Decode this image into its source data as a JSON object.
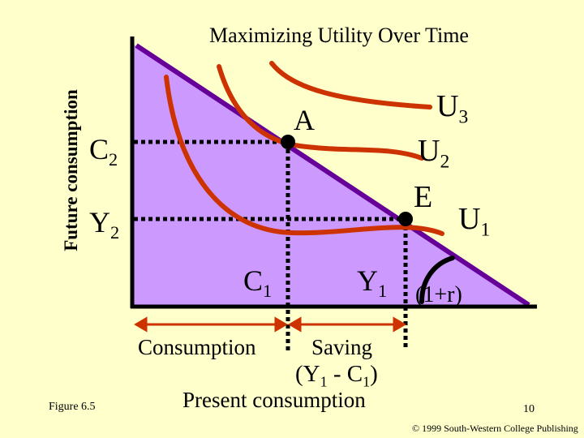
{
  "title": "Maximizing Utility Over Time",
  "y_axis_label": "Future consumption",
  "labels": {
    "c2": [
      "C",
      "2"
    ],
    "y2": [
      "Y",
      "2"
    ],
    "a": [
      "A"
    ],
    "e": [
      "E"
    ],
    "u3": [
      "U",
      "3"
    ],
    "u2": [
      "U",
      "2"
    ],
    "u1": [
      "U",
      "1"
    ],
    "c1": [
      "C",
      "1"
    ],
    "y1": [
      "Y",
      "1"
    ],
    "rate": [
      "(1+r)"
    ]
  },
  "x_annotations": {
    "consumption": [
      "Consumption"
    ],
    "saving": [
      "Saving"
    ],
    "saving_formula": [
      "(Y",
      "1",
      " - C",
      "1",
      ")"
    ],
    "x_axis_label": [
      "Present consumption"
    ]
  },
  "footer": {
    "figure": "Figure 6.5",
    "page": "10",
    "copyright": "© 1999 South-Western College Publishing"
  }
}
